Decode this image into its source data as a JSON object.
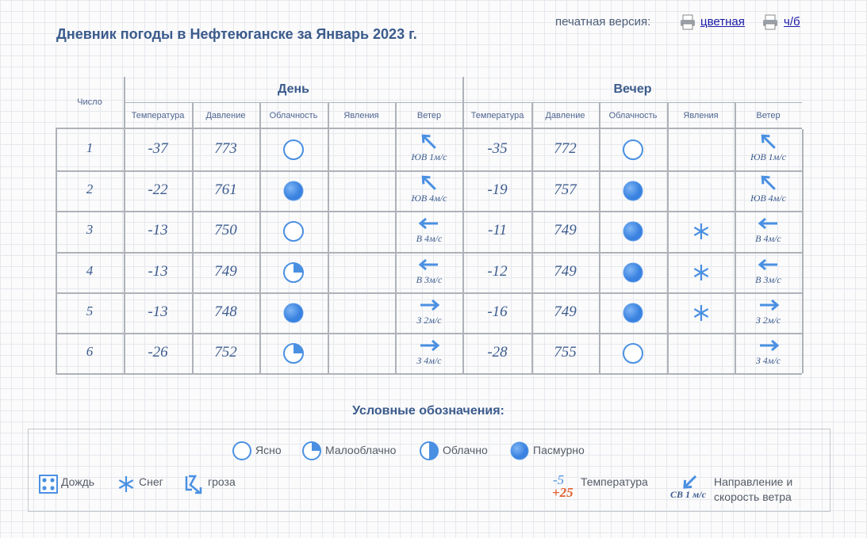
{
  "header": {
    "title": "Дневник погоды в Нефтеюганске за Январь 2023 г.",
    "print_label": "печатная версия:",
    "print_color": "цветная",
    "print_bw": "ч/б"
  },
  "table": {
    "col_date": "Число",
    "group_day": "День",
    "group_evening": "Вечер",
    "subheaders": [
      "Температура",
      "Давление",
      "Облачность",
      "Явления",
      "Ветер"
    ],
    "rows": [
      {
        "date": "1",
        "day": {
          "temp": "-37",
          "pressure": "773",
          "cloud": "Ясно",
          "phenomena": null,
          "wind": "ЮВ 1м/с"
        },
        "evening": {
          "temp": "-35",
          "pressure": "772",
          "cloud": "Ясно",
          "phenomena": null,
          "wind": "ЮВ 1м/с"
        }
      },
      {
        "date": "2",
        "day": {
          "temp": "-22",
          "pressure": "761",
          "cloud": "Пасмурно",
          "phenomena": null,
          "wind": "ЮВ 4м/с"
        },
        "evening": {
          "temp": "-19",
          "pressure": "757",
          "cloud": "Пасмурно",
          "phenomena": null,
          "wind": "ЮВ 4м/с"
        }
      },
      {
        "date": "3",
        "day": {
          "temp": "-13",
          "pressure": "750",
          "cloud": "Ясно",
          "phenomena": null,
          "wind": "В 4м/с"
        },
        "evening": {
          "temp": "-11",
          "pressure": "749",
          "cloud": "Пасмурно",
          "phenomena": "Снег",
          "wind": "В 4м/с"
        }
      },
      {
        "date": "4",
        "day": {
          "temp": "-13",
          "pressure": "749",
          "cloud": "Малооблачно",
          "phenomena": null,
          "wind": "В 3м/с"
        },
        "evening": {
          "temp": "-12",
          "pressure": "749",
          "cloud": "Пасмурно",
          "phenomena": "Снег",
          "wind": "В 3м/с"
        }
      },
      {
        "date": "5",
        "day": {
          "temp": "-13",
          "pressure": "748",
          "cloud": "Пасмурно",
          "phenomena": null,
          "wind": "З 2м/с"
        },
        "evening": {
          "temp": "-16",
          "pressure": "749",
          "cloud": "Пасмурно",
          "phenomena": "Снег",
          "wind": "З 2м/с"
        }
      },
      {
        "date": "6",
        "day": {
          "temp": "-26",
          "pressure": "752",
          "cloud": "Малооблачно",
          "phenomena": null,
          "wind": "З 4м/с"
        },
        "evening": {
          "temp": "-28",
          "pressure": "755",
          "cloud": "Ясно",
          "phenomena": null,
          "wind": "З 4м/с"
        }
      }
    ]
  },
  "legend": {
    "title": "Условные обозначения:",
    "clouds": [
      "Ясно",
      "Малооблачно",
      "Облачно",
      "Пасмурно"
    ],
    "phenomena": [
      "Дождь",
      "Снег",
      "гроза"
    ],
    "temp_sample_neg": "-5",
    "temp_sample_pos": "+25",
    "temp_label": "Температура",
    "wind_sample": "СВ 1 м/с",
    "wind_label_1": "Направление и",
    "wind_label_2": "скорость ветра"
  }
}
